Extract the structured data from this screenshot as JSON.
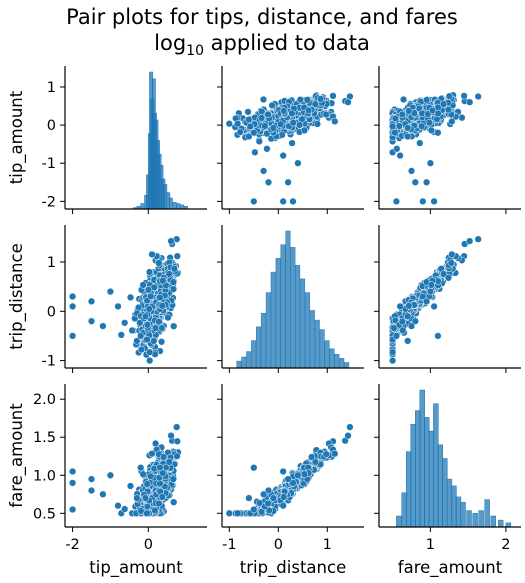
{
  "chart_data": {
    "type": "scatter",
    "title_line1": "Pair plots for tips, distance, and fares",
    "title_line2_base": "log",
    "title_line2_sub": "10",
    "title_line2_rest": " applied to data",
    "variables": [
      "tip_amount",
      "trip_distance",
      "fare_amount"
    ],
    "diagonal_type": "histogram",
    "offdiagonal_type": "scatter",
    "color": "#1f77b4",
    "edge_color": "#ffffff",
    "ranges": {
      "tip_amount": [
        -2.2,
        1.55
      ],
      "trip_distance": [
        -1.15,
        1.75
      ],
      "fare_amount": [
        0.32,
        2.2
      ]
    },
    "ticks": {
      "tip_amount": [
        "-2",
        "-1",
        "0",
        "1"
      ],
      "trip_distance": [
        "-1",
        "0",
        "1"
      ],
      "fare_amount": [
        "0.5",
        "1.0",
        "1.5",
        "2.0"
      ]
    },
    "x_ticks": {
      "tip_amount": [
        "-2",
        "0"
      ],
      "trip_distance": [
        "-1",
        "0",
        "1"
      ],
      "fare_amount": [
        "1",
        "2"
      ]
    },
    "histograms": {
      "tip_amount": {
        "bins": [
          [
            -0.4,
            0.01
          ],
          [
            -0.3,
            0.02
          ],
          [
            -0.2,
            0.04
          ],
          [
            -0.1,
            0.1
          ],
          [
            -0.05,
            0.25
          ],
          [
            0.0,
            0.55
          ],
          [
            0.03,
            1.0
          ],
          [
            0.06,
            0.8
          ],
          [
            0.1,
            0.95
          ],
          [
            0.13,
            0.7
          ],
          [
            0.17,
            0.65
          ],
          [
            0.21,
            0.5
          ],
          [
            0.25,
            0.4
          ],
          [
            0.3,
            0.32
          ],
          [
            0.35,
            0.22
          ],
          [
            0.4,
            0.18
          ],
          [
            0.48,
            0.12
          ],
          [
            0.55,
            0.08
          ],
          [
            0.65,
            0.05
          ],
          [
            0.75,
            0.04
          ],
          [
            0.85,
            0.03
          ],
          [
            0.95,
            0.02
          ]
        ]
      },
      "trip_distance": {
        "bins": [
          [
            -0.85,
            0.05
          ],
          [
            -0.75,
            0.08
          ],
          [
            -0.65,
            0.12
          ],
          [
            -0.55,
            0.2
          ],
          [
            -0.45,
            0.3
          ],
          [
            -0.35,
            0.4
          ],
          [
            -0.25,
            0.55
          ],
          [
            -0.15,
            0.7
          ],
          [
            -0.05,
            0.8
          ],
          [
            0.05,
            0.9
          ],
          [
            0.15,
            1.0
          ],
          [
            0.25,
            0.88
          ],
          [
            0.35,
            0.75
          ],
          [
            0.45,
            0.65
          ],
          [
            0.55,
            0.55
          ],
          [
            0.65,
            0.42
          ],
          [
            0.75,
            0.35
          ],
          [
            0.85,
            0.28
          ],
          [
            0.95,
            0.2
          ],
          [
            1.05,
            0.14
          ],
          [
            1.15,
            0.1
          ],
          [
            1.25,
            0.07
          ],
          [
            1.35,
            0.04
          ]
        ]
      },
      "fare_amount": {
        "bins": [
          [
            0.55,
            0.08
          ],
          [
            0.62,
            0.25
          ],
          [
            0.68,
            0.55
          ],
          [
            0.74,
            0.75
          ],
          [
            0.8,
            0.85
          ],
          [
            0.86,
            1.0
          ],
          [
            0.92,
            0.8
          ],
          [
            0.98,
            0.7
          ],
          [
            1.04,
            0.9
          ],
          [
            1.1,
            0.6
          ],
          [
            1.16,
            0.5
          ],
          [
            1.22,
            0.35
          ],
          [
            1.28,
            0.3
          ],
          [
            1.34,
            0.22
          ],
          [
            1.4,
            0.18
          ],
          [
            1.48,
            0.12
          ],
          [
            1.56,
            0.1
          ],
          [
            1.64,
            0.12
          ],
          [
            1.72,
            0.2
          ],
          [
            1.8,
            0.08
          ],
          [
            1.9,
            0.05
          ],
          [
            2.0,
            0.03
          ]
        ]
      }
    }
  }
}
